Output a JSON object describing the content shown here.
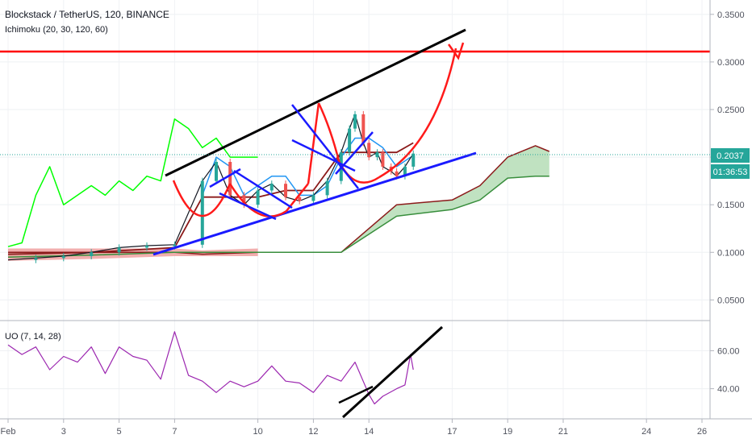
{
  "header": {
    "symbol_line": "Blockstack / TetherUS, 120, BINANCE",
    "indicator_line": "Ichimoku (20, 30, 120, 60)",
    "oscillator_label": "UO (7, 14, 28)"
  },
  "colors": {
    "price": "#131722",
    "candle_up": "#26a69a",
    "candle_down": "#ef5350",
    "tenkan": "#2196f3",
    "kijun": "#8b1a1a",
    "chikou": "#00ff00",
    "cloud_green": "#a5d6a7",
    "cloud_red": "#ef9a9a",
    "resistance": "#ff0000",
    "drawing_black": "#000000",
    "drawing_blue": "#0000ff",
    "drawing_red": "#ff0000",
    "uo_line": "#9c27b0",
    "price_tag": "#26a69a"
  },
  "chart_data": [
    {
      "type": "line",
      "panel": "price",
      "y_axis_ticks": [
        "0.3500",
        "0.3000",
        "0.2500",
        "0.2000",
        "0.1500",
        "0.1000",
        "0.0500"
      ],
      "ylim": [
        0.03,
        0.36
      ],
      "x_axis_ticks": [
        "Feb",
        "3",
        "5",
        "7",
        "10",
        "12",
        "14",
        "17",
        "19",
        "21",
        "24",
        "26"
      ],
      "last_price": "0.2037",
      "countdown": "01:36:53",
      "resistance_level": 0.305,
      "series": [
        {
          "id": "close",
          "x": [
            0,
            1,
            2,
            3,
            4,
            5,
            6,
            7,
            7.5,
            8,
            8.5,
            9,
            9.5,
            10,
            10.5,
            11,
            11.5,
            12,
            12.3,
            12.5,
            12.8,
            13,
            13.3,
            13.5,
            13.8,
            14,
            14.3,
            14.6
          ],
          "values": [
            0.092,
            0.094,
            0.096,
            0.1,
            0.105,
            0.107,
            0.108,
            0.175,
            0.195,
            0.16,
            0.15,
            0.165,
            0.172,
            0.158,
            0.154,
            0.16,
            0.175,
            0.205,
            0.23,
            0.245,
            0.215,
            0.2,
            0.205,
            0.19,
            0.185,
            0.18,
            0.19,
            0.2037
          ]
        },
        {
          "id": "tenkan",
          "x": [
            7,
            7.5,
            8,
            8.5,
            9,
            9.5,
            10,
            10.5,
            11,
            11.5,
            12,
            12.5,
            13,
            13.5,
            14,
            14.5
          ],
          "values": [
            0.16,
            0.2,
            0.19,
            0.16,
            0.17,
            0.18,
            0.18,
            0.16,
            0.16,
            0.17,
            0.2,
            0.22,
            0.22,
            0.21,
            0.19,
            0.2
          ]
        },
        {
          "id": "kijun",
          "x": [
            0,
            3,
            6,
            7,
            8,
            9,
            10,
            11,
            12,
            13,
            14,
            14.6
          ],
          "values": [
            0.098,
            0.1,
            0.105,
            0.158,
            0.158,
            0.158,
            0.165,
            0.165,
            0.205,
            0.205,
            0.205,
            0.215
          ]
        },
        {
          "id": "chikou",
          "x": [
            0,
            0.5,
            1,
            1.5,
            2,
            2.5,
            3,
            3.5,
            4,
            4.5,
            5,
            5.5,
            6,
            6.5,
            7,
            7.5,
            8,
            8.5,
            9
          ],
          "values": [
            0.106,
            0.11,
            0.16,
            0.19,
            0.15,
            0.16,
            0.17,
            0.16,
            0.175,
            0.165,
            0.18,
            0.175,
            0.24,
            0.23,
            0.21,
            0.22,
            0.2,
            0.2,
            0.2
          ]
        },
        {
          "id": "span_a",
          "x": [
            0,
            3,
            6,
            7,
            9,
            11,
            12,
            14,
            16,
            17,
            18,
            19,
            19.5
          ],
          "values": [
            0.1,
            0.1,
            0.1,
            0.098,
            0.1,
            0.1,
            0.1,
            0.15,
            0.155,
            0.17,
            0.2,
            0.212,
            0.206
          ]
        },
        {
          "id": "span_b",
          "x": [
            0,
            3,
            6,
            7,
            9,
            11,
            12,
            14,
            16,
            17,
            18,
            19,
            19.5
          ],
          "values": [
            0.095,
            0.097,
            0.1,
            0.1,
            0.1,
            0.1,
            0.1,
            0.138,
            0.145,
            0.155,
            0.178,
            0.18,
            0.18
          ]
        }
      ]
    },
    {
      "type": "line",
      "panel": "oscillator",
      "y_axis_ticks": [
        "60.00",
        "40.00"
      ],
      "ylim": [
        25,
        75
      ],
      "series": [
        {
          "id": "uo",
          "x": [
            0,
            0.5,
            1,
            1.5,
            2,
            2.5,
            3,
            3.5,
            4,
            4.5,
            5,
            5.5,
            6,
            6.5,
            7,
            7.5,
            8,
            8.5,
            9,
            9.5,
            10,
            10.5,
            11,
            11.5,
            12,
            12.5,
            13,
            13.2,
            13.5,
            14,
            14.3,
            14.5,
            14.6
          ],
          "values": [
            63,
            58,
            62,
            50,
            57,
            54,
            62,
            48,
            62,
            57,
            55,
            45,
            70,
            47,
            44,
            38,
            44,
            41,
            44,
            52,
            44,
            43,
            38,
            47,
            44,
            54,
            37,
            32,
            36,
            40,
            42,
            58,
            50
          ]
        }
      ]
    }
  ]
}
